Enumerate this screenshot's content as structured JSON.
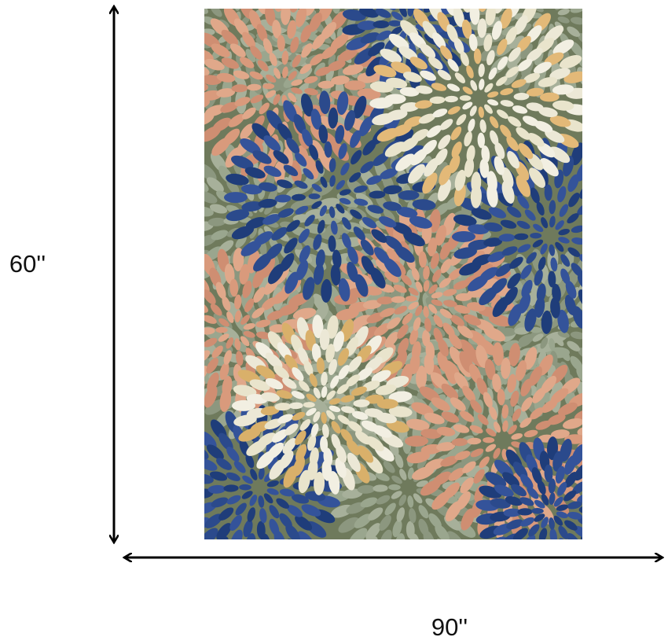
{
  "dimensions": {
    "height_label": "60''",
    "width_label": "90''"
  }
}
